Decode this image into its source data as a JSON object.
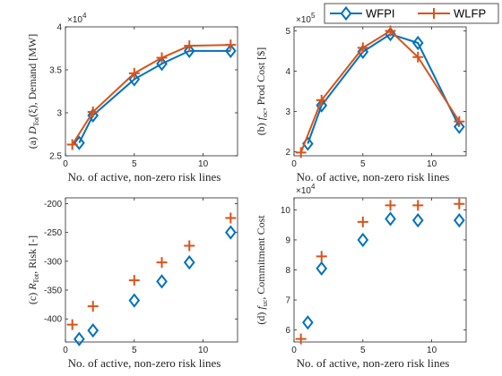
{
  "chart_data": [
    {
      "type": "line",
      "panel_label": "(a)",
      "xlabel": "No. of active, non-zero risk lines",
      "ylabel": "D_Tot(ξ), Demand [MW]",
      "ylabel_parts": {
        "symbol": "D",
        "sub": "Tot",
        "arg": "(ξ)",
        "rest": ", Demand [MW]"
      },
      "exponent": "×10",
      "exponent_power": "4",
      "xlim": [
        0,
        12.5
      ],
      "ylim": [
        2.5,
        4
      ],
      "xticks": [
        0,
        5,
        10
      ],
      "yticks": [
        2.5,
        3,
        3.5,
        4
      ],
      "ytick_labels": [
        "2.5",
        "3",
        "3.5",
        "4"
      ],
      "series": [
        {
          "name": "WFPI",
          "x": [
            1,
            2,
            5,
            7,
            9,
            12
          ],
          "y": [
            2.65,
            2.97,
            3.39,
            3.57,
            3.72,
            3.72
          ]
        },
        {
          "name": "WLFP",
          "x": [
            0.5,
            2,
            5,
            7,
            9,
            12
          ],
          "y": [
            2.63,
            3.01,
            3.46,
            3.64,
            3.78,
            3.79
          ]
        }
      ]
    },
    {
      "type": "line",
      "panel_label": "(b)",
      "xlabel": "No. of active, non-zero risk lines",
      "ylabel": "f_oc, Prod Cost [$]",
      "ylabel_parts": {
        "symbol": "f",
        "sub": "oc",
        "arg": "",
        "rest": ", Prod Cost [$]"
      },
      "exponent": "×10",
      "exponent_power": "5",
      "xlim": [
        0,
        12.5
      ],
      "ylim": [
        1.9,
        5.1
      ],
      "xticks": [
        0,
        5,
        10
      ],
      "yticks": [
        2,
        3,
        4,
        5
      ],
      "ytick_labels": [
        "2",
        "3",
        "4",
        "5"
      ],
      "series": [
        {
          "name": "WFPI",
          "x": [
            1,
            2,
            5,
            7,
            9,
            12
          ],
          "y": [
            2.2,
            3.15,
            4.48,
            4.92,
            4.7,
            2.62
          ]
        },
        {
          "name": "WLFP",
          "x": [
            0.5,
            2,
            5,
            7,
            9,
            12
          ],
          "y": [
            1.98,
            3.28,
            4.58,
            5.0,
            4.35,
            2.75
          ]
        }
      ]
    },
    {
      "type": "scatter",
      "panel_label": "(c)",
      "xlabel": "No. of active, non-zero risk lines",
      "ylabel": "R_Tot, Risk [-]",
      "ylabel_parts": {
        "symbol": "R",
        "sub": "Tot",
        "arg": "",
        "rest": ", Risk [-]"
      },
      "exponent": "",
      "exponent_power": "",
      "xlim": [
        0,
        12.5
      ],
      "ylim": [
        -440,
        -190
      ],
      "xticks": [
        0,
        5,
        10
      ],
      "yticks": [
        -400,
        -350,
        -300,
        -250,
        -200
      ],
      "ytick_labels": [
        "-400",
        "-350",
        "-300",
        "-250",
        "-200"
      ],
      "series": [
        {
          "name": "WFPI",
          "x": [
            1,
            2,
            5,
            7,
            9,
            12
          ],
          "y": [
            -435,
            -420,
            -368,
            -335,
            -302,
            -250
          ]
        },
        {
          "name": "WLFP",
          "x": [
            0.5,
            2,
            5,
            7,
            9,
            12
          ],
          "y": [
            -410,
            -378,
            -333,
            -302,
            -273,
            -225
          ]
        }
      ]
    },
    {
      "type": "scatter",
      "panel_label": "(d)",
      "xlabel": "No. of active, non-zero risk lines",
      "ylabel": "f_uc, Commitment Cost",
      "ylabel_parts": {
        "symbol": "f",
        "sub": "uc",
        "arg": "",
        "rest": ", Commitment Cost"
      },
      "exponent": "×10",
      "exponent_power": "4",
      "xlim": [
        0,
        12.5
      ],
      "ylim": [
        5.6,
        10.4
      ],
      "xticks": [
        0,
        5,
        10
      ],
      "yticks": [
        6,
        7,
        8,
        9,
        10
      ],
      "ytick_labels": [
        "6",
        "7",
        "8",
        "9",
        "10"
      ],
      "series": [
        {
          "name": "WFPI",
          "x": [
            1,
            2,
            5,
            7,
            9,
            12
          ],
          "y": [
            6.25,
            8.05,
            9.0,
            9.7,
            9.65,
            9.65
          ]
        },
        {
          "name": "WLFP",
          "x": [
            0.5,
            2,
            5,
            7,
            9,
            12
          ],
          "y": [
            5.7,
            8.45,
            9.6,
            10.15,
            10.15,
            10.2
          ]
        }
      ]
    }
  ],
  "legend": {
    "placement": "top-right",
    "entries": [
      {
        "label": "WFPI",
        "color": "#0072BD",
        "marker": "diamond-open"
      },
      {
        "label": "WLFP",
        "color": "#D95319",
        "marker": "plus"
      }
    ]
  },
  "colors": {
    "wfpi": "#0072BD",
    "wlfp": "#D95319",
    "axis": "#262626",
    "grid": "#dddddd"
  }
}
